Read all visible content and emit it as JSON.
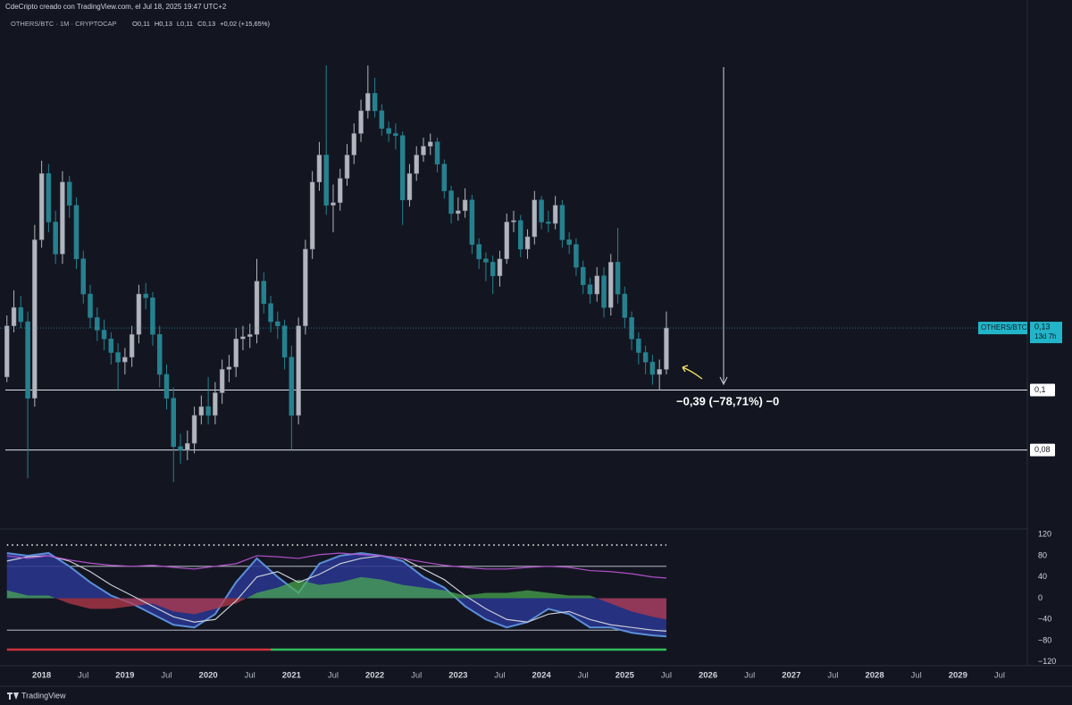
{
  "page": {
    "attribution": "CdeCripto creado con TradingView.com, el Jul 18, 2025 19:47 UTC+2",
    "symbol_line": "OTHERS/BTC · 1M · CRYPTOCAP",
    "ohlc": [
      "O0,11",
      "H0,13",
      "L0,11",
      "C0,13",
      "+0,02 (+15,65%)"
    ],
    "brand": "TradingView"
  },
  "chart_data": [
    {
      "type": "candlestick",
      "log_scale": true,
      "up_color": "#b2b5be",
      "down_color": "#26818f",
      "xlim": [
        "2017-07",
        "2029-11"
      ],
      "ylim": [
        0.06,
        0.4
      ],
      "xticks": [
        {
          "value": "2018-01",
          "label": "2018"
        },
        {
          "value": "2018-07",
          "label": "Jul"
        },
        {
          "value": "2019-01",
          "label": "2019"
        },
        {
          "value": "2019-07",
          "label": "Jul"
        },
        {
          "value": "2020-01",
          "label": "2020"
        },
        {
          "value": "2020-07",
          "label": "Jul"
        },
        {
          "value": "2021-01",
          "label": "2021"
        },
        {
          "value": "2021-07",
          "label": "Jul"
        },
        {
          "value": "2022-01",
          "label": "2022"
        },
        {
          "value": "2022-07",
          "label": "Jul"
        },
        {
          "value": "2023-01",
          "label": "2023"
        },
        {
          "value": "2023-07",
          "label": "Jul"
        },
        {
          "value": "2024-01",
          "label": "2024"
        },
        {
          "value": "2024-07",
          "label": "Jul"
        },
        {
          "value": "2025-01",
          "label": "2025"
        },
        {
          "value": "2025-07",
          "label": "Jul"
        },
        {
          "value": "2026-01",
          "label": "2026"
        },
        {
          "value": "2026-07",
          "label": "Jul"
        },
        {
          "value": "2027-01",
          "label": "2027"
        },
        {
          "value": "2027-07",
          "label": "Jul"
        },
        {
          "value": "2028-01",
          "label": "2028"
        },
        {
          "value": "2028-07",
          "label": "Jul"
        },
        {
          "value": "2029-01",
          "label": "2029"
        },
        {
          "value": "2029-07",
          "label": "Jul"
        }
      ],
      "x": [
        "2017-08",
        "2017-09",
        "2017-10",
        "2017-11",
        "2017-12",
        "2018-01",
        "2018-02",
        "2018-03",
        "2018-04",
        "2018-05",
        "2018-06",
        "2018-07",
        "2018-08",
        "2018-09",
        "2018-10",
        "2018-11",
        "2018-12",
        "2019-01",
        "2019-02",
        "2019-03",
        "2019-04",
        "2019-05",
        "2019-06",
        "2019-07",
        "2019-08",
        "2019-09",
        "2019-10",
        "2019-11",
        "2019-12",
        "2020-01",
        "2020-02",
        "2020-03",
        "2020-04",
        "2020-05",
        "2020-06",
        "2020-07",
        "2020-08",
        "2020-09",
        "2020-10",
        "2020-11",
        "2020-12",
        "2021-01",
        "2021-02",
        "2021-03",
        "2021-04",
        "2021-05",
        "2021-06",
        "2021-07",
        "2021-08",
        "2021-09",
        "2021-10",
        "2021-11",
        "2021-12",
        "2022-01",
        "2022-02",
        "2022-03",
        "2022-04",
        "2022-05",
        "2022-06",
        "2022-07",
        "2022-08",
        "2022-09",
        "2022-10",
        "2022-11",
        "2022-12",
        "2023-01",
        "2023-02",
        "2023-03",
        "2023-04",
        "2023-05",
        "2023-06",
        "2023-07",
        "2023-08",
        "2023-09",
        "2023-10",
        "2023-11",
        "2023-12",
        "2024-01",
        "2024-02",
        "2024-03",
        "2024-04",
        "2024-05",
        "2024-06",
        "2024-07",
        "2024-08",
        "2024-09",
        "2024-10",
        "2024-11",
        "2024-12",
        "2025-01",
        "2025-02",
        "2025-03",
        "2025-04",
        "2025-05",
        "2025-06",
        "2025-07"
      ],
      "open": [
        0.105,
        0.127,
        0.136,
        0.129,
        0.097,
        0.175,
        0.224,
        0.187,
        0.166,
        0.217,
        0.199,
        0.163,
        0.143,
        0.131,
        0.125,
        0.121,
        0.115,
        0.111,
        0.113,
        0.123,
        0.143,
        0.141,
        0.123,
        0.106,
        0.097,
        0.081,
        0.08,
        0.082,
        0.091,
        0.094,
        0.091,
        0.099,
        0.108,
        0.109,
        0.121,
        0.122,
        0.123,
        0.15,
        0.138,
        0.129,
        0.127,
        0.113,
        0.091,
        0.127,
        0.169,
        0.217,
        0.24,
        0.199,
        0.201,
        0.22,
        0.24,
        0.26,
        0.283,
        0.302,
        0.283,
        0.265,
        0.26,
        0.258,
        0.203,
        0.224,
        0.24,
        0.248,
        0.252,
        0.232,
        0.21,
        0.193,
        0.195,
        0.203,
        0.172,
        0.163,
        0.161,
        0.153,
        0.163,
        0.187,
        0.188,
        0.169,
        0.177,
        0.203,
        0.187,
        0.186,
        0.199,
        0.175,
        0.172,
        0.158,
        0.148,
        0.143,
        0.153,
        0.136,
        0.161,
        0.143,
        0.131,
        0.121,
        0.115,
        0.111,
        0.106,
        0.108
      ],
      "high": [
        0.132,
        0.145,
        0.142,
        0.134,
        0.185,
        0.235,
        0.232,
        0.195,
        0.226,
        0.222,
        0.205,
        0.168,
        0.148,
        0.136,
        0.13,
        0.124,
        0.119,
        0.117,
        0.127,
        0.148,
        0.149,
        0.144,
        0.127,
        0.11,
        0.101,
        0.085,
        0.086,
        0.094,
        0.098,
        0.105,
        0.103,
        0.112,
        0.114,
        0.126,
        0.127,
        0.128,
        0.163,
        0.155,
        0.142,
        0.134,
        0.13,
        0.118,
        0.131,
        0.175,
        0.226,
        0.252,
        0.335,
        0.215,
        0.228,
        0.25,
        0.27,
        0.295,
        0.335,
        0.32,
        0.29,
        0.272,
        0.27,
        0.262,
        0.232,
        0.248,
        0.256,
        0.26,
        0.256,
        0.236,
        0.214,
        0.205,
        0.212,
        0.207,
        0.176,
        0.167,
        0.165,
        0.168,
        0.193,
        0.195,
        0.192,
        0.182,
        0.21,
        0.206,
        0.195,
        0.206,
        0.203,
        0.18,
        0.176,
        0.162,
        0.152,
        0.158,
        0.158,
        0.166,
        0.183,
        0.147,
        0.134,
        0.124,
        0.118,
        0.114,
        0.112,
        0.134
      ],
      "low": [
        0.103,
        0.124,
        0.126,
        0.072,
        0.094,
        0.17,
        0.18,
        0.16,
        0.16,
        0.19,
        0.157,
        0.138,
        0.126,
        0.12,
        0.116,
        0.11,
        0.1,
        0.106,
        0.109,
        0.119,
        0.135,
        0.118,
        0.101,
        0.093,
        0.071,
        0.076,
        0.077,
        0.079,
        0.088,
        0.088,
        0.088,
        0.095,
        0.103,
        0.105,
        0.116,
        0.117,
        0.119,
        0.133,
        0.124,
        0.121,
        0.108,
        0.08,
        0.088,
        0.123,
        0.163,
        0.21,
        0.192,
        0.18,
        0.195,
        0.214,
        0.232,
        0.252,
        0.275,
        0.276,
        0.258,
        0.252,
        0.245,
        0.185,
        0.198,
        0.218,
        0.234,
        0.24,
        0.225,
        0.204,
        0.186,
        0.188,
        0.19,
        0.166,
        0.157,
        0.15,
        0.143,
        0.147,
        0.16,
        0.18,
        0.164,
        0.163,
        0.172,
        0.182,
        0.18,
        0.182,
        0.17,
        0.166,
        0.153,
        0.143,
        0.138,
        0.139,
        0.131,
        0.132,
        0.138,
        0.126,
        0.116,
        0.11,
        0.106,
        0.102,
        0.1,
        0.106
      ],
      "close": [
        0.127,
        0.136,
        0.129,
        0.097,
        0.175,
        0.224,
        0.187,
        0.166,
        0.217,
        0.199,
        0.163,
        0.143,
        0.131,
        0.125,
        0.121,
        0.115,
        0.111,
        0.113,
        0.123,
        0.143,
        0.141,
        0.123,
        0.106,
        0.097,
        0.081,
        0.08,
        0.082,
        0.091,
        0.094,
        0.091,
        0.099,
        0.108,
        0.109,
        0.121,
        0.122,
        0.123,
        0.15,
        0.138,
        0.129,
        0.127,
        0.113,
        0.091,
        0.127,
        0.169,
        0.217,
        0.24,
        0.199,
        0.201,
        0.22,
        0.24,
        0.26,
        0.283,
        0.302,
        0.283,
        0.265,
        0.26,
        0.258,
        0.203,
        0.224,
        0.24,
        0.248,
        0.252,
        0.232,
        0.21,
        0.193,
        0.195,
        0.203,
        0.172,
        0.163,
        0.161,
        0.153,
        0.163,
        0.187,
        0.188,
        0.169,
        0.177,
        0.203,
        0.187,
        0.186,
        0.199,
        0.175,
        0.172,
        0.158,
        0.148,
        0.143,
        0.153,
        0.136,
        0.161,
        0.143,
        0.131,
        0.121,
        0.115,
        0.111,
        0.106,
        0.108,
        0.126
      ],
      "hlines": [
        {
          "value": 0.1,
          "label": "0,1"
        },
        {
          "value": 0.08,
          "label": "0,08"
        }
      ],
      "price_tag": {
        "symbol": "OTHERS/BTC",
        "label": "0,13",
        "countdown": "13d 7h"
      },
      "annotation": "−0,39 (−78,71%) −0"
    },
    {
      "type": "oscillator",
      "ylim": [
        -127,
        127
      ],
      "yticks": [
        120,
        80,
        40,
        0,
        {
          "value": -40,
          "label": "−40"
        },
        {
          "value": -80,
          "label": "−80"
        },
        {
          "value": -120,
          "label": "−120"
        }
      ],
      "levels": [
        100,
        60,
        -60
      ],
      "x": [
        "2017-08",
        "2017-11",
        "2018-02",
        "2018-05",
        "2018-08",
        "2018-11",
        "2019-02",
        "2019-05",
        "2019-08",
        "2019-11",
        "2020-02",
        "2020-05",
        "2020-08",
        "2020-11",
        "2021-02",
        "2021-05",
        "2021-08",
        "2021-11",
        "2022-02",
        "2022-05",
        "2022-08",
        "2022-11",
        "2023-02",
        "2023-05",
        "2023-08",
        "2023-11",
        "2024-02",
        "2024-05",
        "2024-08",
        "2024-11",
        "2025-02",
        "2025-05",
        "2025-07"
      ],
      "series": [
        {
          "kind": "area",
          "color": "#5b8fd9",
          "fill": "#2a3690",
          "values": [
            85,
            80,
            85,
            60,
            30,
            5,
            -10,
            -30,
            -50,
            -55,
            -30,
            30,
            75,
            40,
            10,
            65,
            80,
            85,
            80,
            70,
            40,
            20,
            -15,
            -40,
            -55,
            -45,
            -20,
            -30,
            -55,
            -55,
            -65,
            -70,
            -72
          ]
        },
        {
          "kind": "histogram",
          "color": "#4caf50",
          "negative_color": "#b53a4a",
          "values": [
            15,
            5,
            5,
            -10,
            -20,
            -20,
            -15,
            -10,
            -25,
            -30,
            -20,
            -10,
            10,
            20,
            35,
            25,
            30,
            40,
            35,
            25,
            20,
            15,
            5,
            10,
            10,
            15,
            10,
            5,
            5,
            -10,
            -25,
            -35,
            -40
          ]
        },
        {
          "kind": "line",
          "color": "#c9ccd6",
          "values": [
            70,
            78,
            80,
            70,
            50,
            25,
            5,
            -15,
            -35,
            -45,
            -40,
            -5,
            40,
            50,
            30,
            45,
            65,
            75,
            80,
            75,
            55,
            35,
            5,
            -20,
            -40,
            -45,
            -30,
            -25,
            -40,
            -50,
            -55,
            -60,
            -62
          ]
        },
        {
          "kind": "line",
          "color": "#b04fc9",
          "values": [
            80,
            75,
            80,
            72,
            66,
            62,
            60,
            62,
            58,
            55,
            60,
            65,
            80,
            78,
            75,
            82,
            85,
            82,
            80,
            75,
            68,
            62,
            58,
            55,
            55,
            58,
            60,
            58,
            52,
            50,
            46,
            40,
            38
          ]
        }
      ]
    }
  ]
}
